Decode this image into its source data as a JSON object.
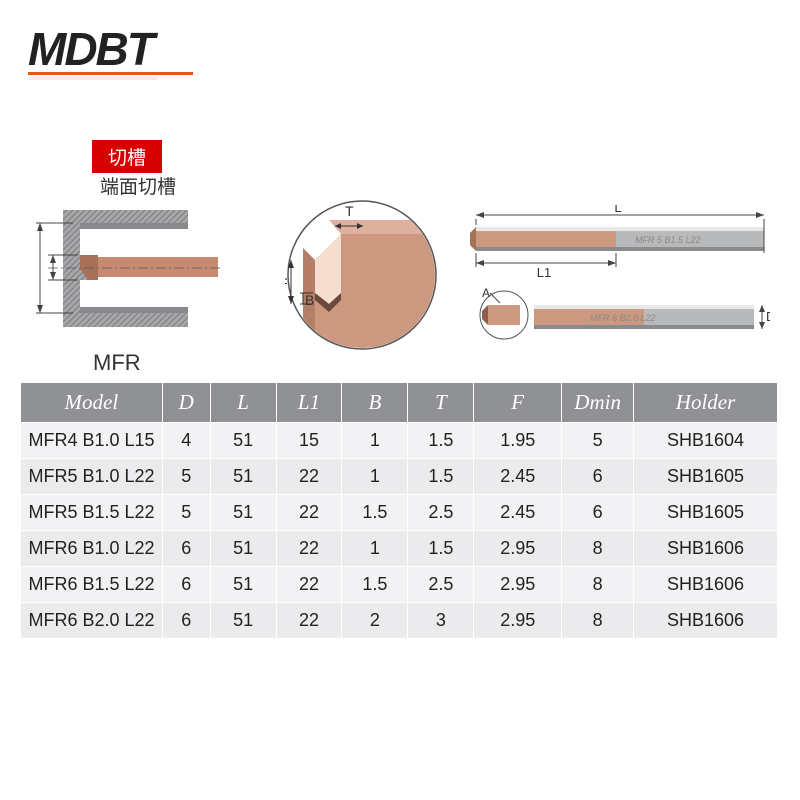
{
  "logo": {
    "text": "MDBT",
    "accent_color": "#e8570f"
  },
  "badge": {
    "text": "切槽",
    "bg": "#d80000"
  },
  "subtitle": "端面切槽",
  "mfr_label": "MFR",
  "diagram_left": {
    "grey_color": "#a6a7a9",
    "copper_color": "#c78a71",
    "tool_color": "#d1937a"
  },
  "detail_circle": {
    "labels": {
      "T": "T",
      "B": "B",
      "F": "F"
    },
    "copper_color": "#cc9980",
    "border_color": "#555555"
  },
  "bar_diagram": {
    "labels": {
      "L": "L",
      "L1": "L1",
      "A": "A",
      "D": "D"
    },
    "tool_face_color": "#cc9980",
    "grey_color": "#b8b9bb",
    "engraving": "MFR 6 B2.0 L22"
  },
  "table": {
    "header_bg": "#909195",
    "header_color": "#ffffff",
    "row_bg": "#f2f2f4",
    "row_alt_bg": "#ebebee",
    "columns": [
      "Model",
      "D",
      "L",
      "L1",
      "B",
      "T",
      "F",
      "Dmin",
      "Holder"
    ],
    "rows": [
      [
        "MFR4 B1.0 L15",
        "4",
        "51",
        "15",
        "1",
        "1.5",
        "1.95",
        "5",
        "SHB1604"
      ],
      [
        "MFR5 B1.0 L22",
        "5",
        "51",
        "22",
        "1",
        "1.5",
        "2.45",
        "6",
        "SHB1605"
      ],
      [
        "MFR5 B1.5 L22",
        "5",
        "51",
        "22",
        "1.5",
        "2.5",
        "2.45",
        "6",
        "SHB1605"
      ],
      [
        "MFR6 B1.0 L22",
        "6",
        "51",
        "22",
        "1",
        "1.5",
        "2.95",
        "8",
        "SHB1606"
      ],
      [
        "MFR6 B1.5 L22",
        "6",
        "51",
        "22",
        "1.5",
        "2.5",
        "2.95",
        "8",
        "SHB1606"
      ],
      [
        "MFR6 B2.0 L22",
        "6",
        "51",
        "22",
        "2",
        "3",
        "2.95",
        "8",
        "SHB1606"
      ]
    ]
  }
}
